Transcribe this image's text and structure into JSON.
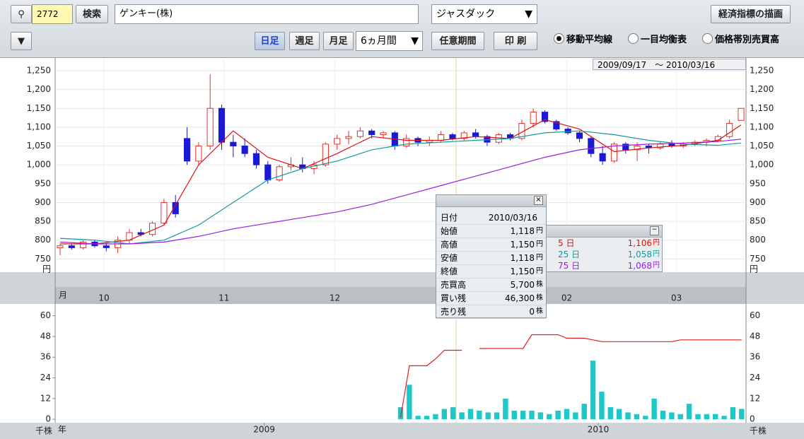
{
  "toolbar": {
    "code": "2772",
    "search": "検索",
    "company": "ゲンキー(株)",
    "market": "ジャスダック",
    "economic": "経済指標の描画",
    "daily": "日足",
    "weekly": "週足",
    "monthly": "月足",
    "period": "6ヵ月間",
    "custom": "任意期間",
    "print": "印 刷",
    "radios": [
      "移動平均線",
      "一目均衡表",
      "価格帯別売買高"
    ]
  },
  "chart_data": [
    {
      "type": "candlestick",
      "date_range": "2009/09/17　～ 2010/03/16",
      "open": [
        780,
        785,
        780,
        795,
        785,
        780,
        800,
        820,
        815,
        845,
        900,
        1070,
        1010,
        1050,
        1150,
        1060,
        1050,
        1030,
        1000,
        960,
        995,
        1000,
        990,
        1000,
        1055,
        1070,
        1075,
        1090,
        1080,
        1085,
        1050,
        1070,
        1060,
        1065,
        1080,
        1070,
        1085,
        1075,
        1060,
        1080,
        1070,
        1110,
        1140,
        1115,
        1095,
        1085,
        1070,
        1030,
        1010,
        1055,
        1040,
        1050,
        1045,
        1055,
        1050,
        1055,
        1060,
        1065,
        1075,
        1118
      ],
      "high": [
        790,
        790,
        800,
        800,
        795,
        810,
        830,
        830,
        850,
        910,
        920,
        1100,
        1060,
        1240,
        1160,
        1080,
        1070,
        1040,
        1010,
        1000,
        1020,
        1020,
        1010,
        1060,
        1080,
        1090,
        1100,
        1095,
        1090,
        1090,
        1080,
        1075,
        1075,
        1090,
        1085,
        1090,
        1095,
        1080,
        1085,
        1085,
        1120,
        1150,
        1145,
        1120,
        1100,
        1090,
        1075,
        1050,
        1060,
        1060,
        1060,
        1055,
        1060,
        1065,
        1060,
        1065,
        1070,
        1080,
        1120,
        1150
      ],
      "low": [
        760,
        775,
        775,
        780,
        770,
        765,
        790,
        810,
        810,
        840,
        860,
        1000,
        1000,
        1040,
        1040,
        1020,
        1020,
        990,
        950,
        955,
        985,
        980,
        975,
        995,
        1040,
        1055,
        1070,
        1070,
        1070,
        1040,
        1045,
        1050,
        1050,
        1060,
        1065,
        1065,
        1070,
        1050,
        1055,
        1065,
        1065,
        1100,
        1110,
        1090,
        1080,
        1060,
        1020,
        1000,
        1005,
        1030,
        1010,
        1030,
        1040,
        1045,
        1045,
        1050,
        1050,
        1060,
        1070,
        1118
      ],
      "close": [
        785,
        780,
        795,
        785,
        780,
        800,
        820,
        815,
        845,
        900,
        870,
        1010,
        1050,
        1150,
        1060,
        1050,
        1030,
        1000,
        960,
        995,
        1000,
        990,
        1000,
        1055,
        1070,
        1075,
        1090,
        1080,
        1085,
        1050,
        1070,
        1060,
        1065,
        1080,
        1070,
        1085,
        1075,
        1060,
        1080,
        1070,
        1110,
        1140,
        1115,
        1095,
        1085,
        1070,
        1030,
        1010,
        1055,
        1040,
        1050,
        1045,
        1055,
        1050,
        1055,
        1060,
        1065,
        1075,
        1110,
        1150
      ],
      "up_color": "#e8302a",
      "down_color": "#1a1ad6",
      "ylim": [
        715,
        1280
      ],
      "yticks": [
        750,
        800,
        850,
        900,
        950,
        {
          "value": 1000,
          "label": "1,000"
        },
        {
          "value": 1050,
          "label": "1,050"
        },
        {
          "value": 1100,
          "label": "1,100"
        },
        {
          "value": 1150,
          "label": "1,150"
        },
        {
          "value": 1200,
          "label": "1,200"
        },
        {
          "value": 1250,
          "label": "1,250"
        }
      ],
      "y_unit": "円",
      "x_unit": "月",
      "xticks": [
        {
          "value": 3.8,
          "label": "10"
        },
        {
          "value": 14.2,
          "label": "11"
        },
        {
          "value": 23.8,
          "label": "12"
        },
        {
          "value": 43.9,
          "label": "02"
        },
        {
          "value": 53.4,
          "label": "03"
        }
      ],
      "grid": true,
      "legend_unit": "円",
      "series": [
        {
          "name": "5 日",
          "legend_value": "1,106",
          "color": "#e01010",
          "x": [
            0,
            3,
            6,
            9,
            12,
            15,
            18,
            21,
            24,
            27,
            30,
            33,
            36,
            39,
            42,
            45,
            48,
            51,
            54,
            57,
            59
          ],
          "values": [
            790,
            790,
            800,
            840,
            1000,
            1090,
            1020,
            990,
            1030,
            1075,
            1065,
            1065,
            1075,
            1070,
            1120,
            1095,
            1035,
            1045,
            1052,
            1065,
            1106
          ]
        },
        {
          "name": "25 日",
          "legend_value": "1,058",
          "color": "#119c9c",
          "x": [
            0,
            3,
            6,
            9,
            12,
            15,
            18,
            21,
            24,
            27,
            30,
            33,
            36,
            39,
            42,
            45,
            48,
            51,
            54,
            57,
            59
          ],
          "values": [
            805,
            800,
            790,
            800,
            840,
            900,
            960,
            990,
            1010,
            1040,
            1055,
            1060,
            1065,
            1070,
            1085,
            1090,
            1080,
            1065,
            1055,
            1052,
            1058
          ]
        },
        {
          "name": "75 日",
          "legend_value": "1,068",
          "color": "#9b1ee0",
          "x": [
            0,
            3,
            6,
            9,
            12,
            15,
            18,
            21,
            24,
            27,
            30,
            33,
            36,
            39,
            42,
            45,
            48,
            51,
            54,
            57,
            59
          ],
          "values": [
            795,
            790,
            790,
            795,
            810,
            830,
            845,
            860,
            875,
            895,
            920,
            945,
            970,
            995,
            1020,
            1040,
            1050,
            1055,
            1058,
            1062,
            1068
          ]
        }
      ]
    },
    {
      "type": "bar",
      "color": "#1ec8c8",
      "values": [
        null,
        null,
        null,
        null,
        null,
        null,
        null,
        null,
        null,
        null,
        null,
        null,
        null,
        null,
        null,
        null,
        null,
        null,
        null,
        null,
        null,
        null,
        null,
        null,
        null,
        null,
        null,
        null,
        null,
        null,
        null,
        null,
        null,
        null,
        null,
        null,
        null,
        null,
        null,
        7,
        20,
        2,
        2,
        3,
        6,
        7,
        4,
        6,
        5,
        4,
        4,
        12,
        5,
        5,
        5,
        4,
        3,
        5,
        6,
        4,
        9,
        34,
        16,
        7,
        6,
        4,
        3,
        2,
        12,
        5,
        4,
        3,
        9,
        3,
        3,
        3,
        2,
        7,
        6
      ],
      "ylim": [
        -2,
        66
      ],
      "yticks": [
        0,
        12,
        24,
        36,
        48,
        60
      ],
      "y_unit": "千株",
      "x_unit": "年",
      "xticks": [
        {
          "value": 23.4,
          "label": "2009"
        },
        {
          "value": 61.6,
          "label": "2010"
        }
      ],
      "series": [
        {
          "color": "#e02020",
          "values": [
            null,
            null,
            null,
            null,
            null,
            null,
            null,
            null,
            null,
            null,
            null,
            null,
            null,
            null,
            null,
            null,
            null,
            null,
            null,
            null,
            null,
            null,
            null,
            null,
            null,
            null,
            null,
            null,
            null,
            null,
            null,
            null,
            null,
            null,
            null,
            null,
            null,
            null,
            null,
            1,
            31,
            31,
            31,
            35,
            40,
            40,
            40,
            null,
            41,
            41,
            41,
            41,
            41,
            41,
            49,
            49,
            49,
            49,
            47,
            47,
            47,
            46,
            45,
            45,
            45,
            45,
            45,
            45,
            45,
            45,
            45,
            46,
            46,
            46,
            46,
            46,
            46,
            46,
            46
          ]
        }
      ]
    }
  ],
  "info_panel": {
    "rows": [
      {
        "label": "日付",
        "value": "2010/03/16"
      },
      {
        "label": "始値",
        "value": "1,118",
        "unit": "円"
      },
      {
        "label": "高値",
        "value": "1,150",
        "unit": "円"
      },
      {
        "label": "安値",
        "value": "1,118",
        "unit": "円"
      },
      {
        "label": "終値",
        "value": "1,150",
        "unit": "円"
      },
      {
        "label": "売買高",
        "value": "5,700",
        "unit": "株"
      },
      {
        "label": "買い残",
        "value": "46,300",
        "unit": "株"
      },
      {
        "label": "売り残",
        "value": "0",
        "unit": "株"
      }
    ]
  }
}
